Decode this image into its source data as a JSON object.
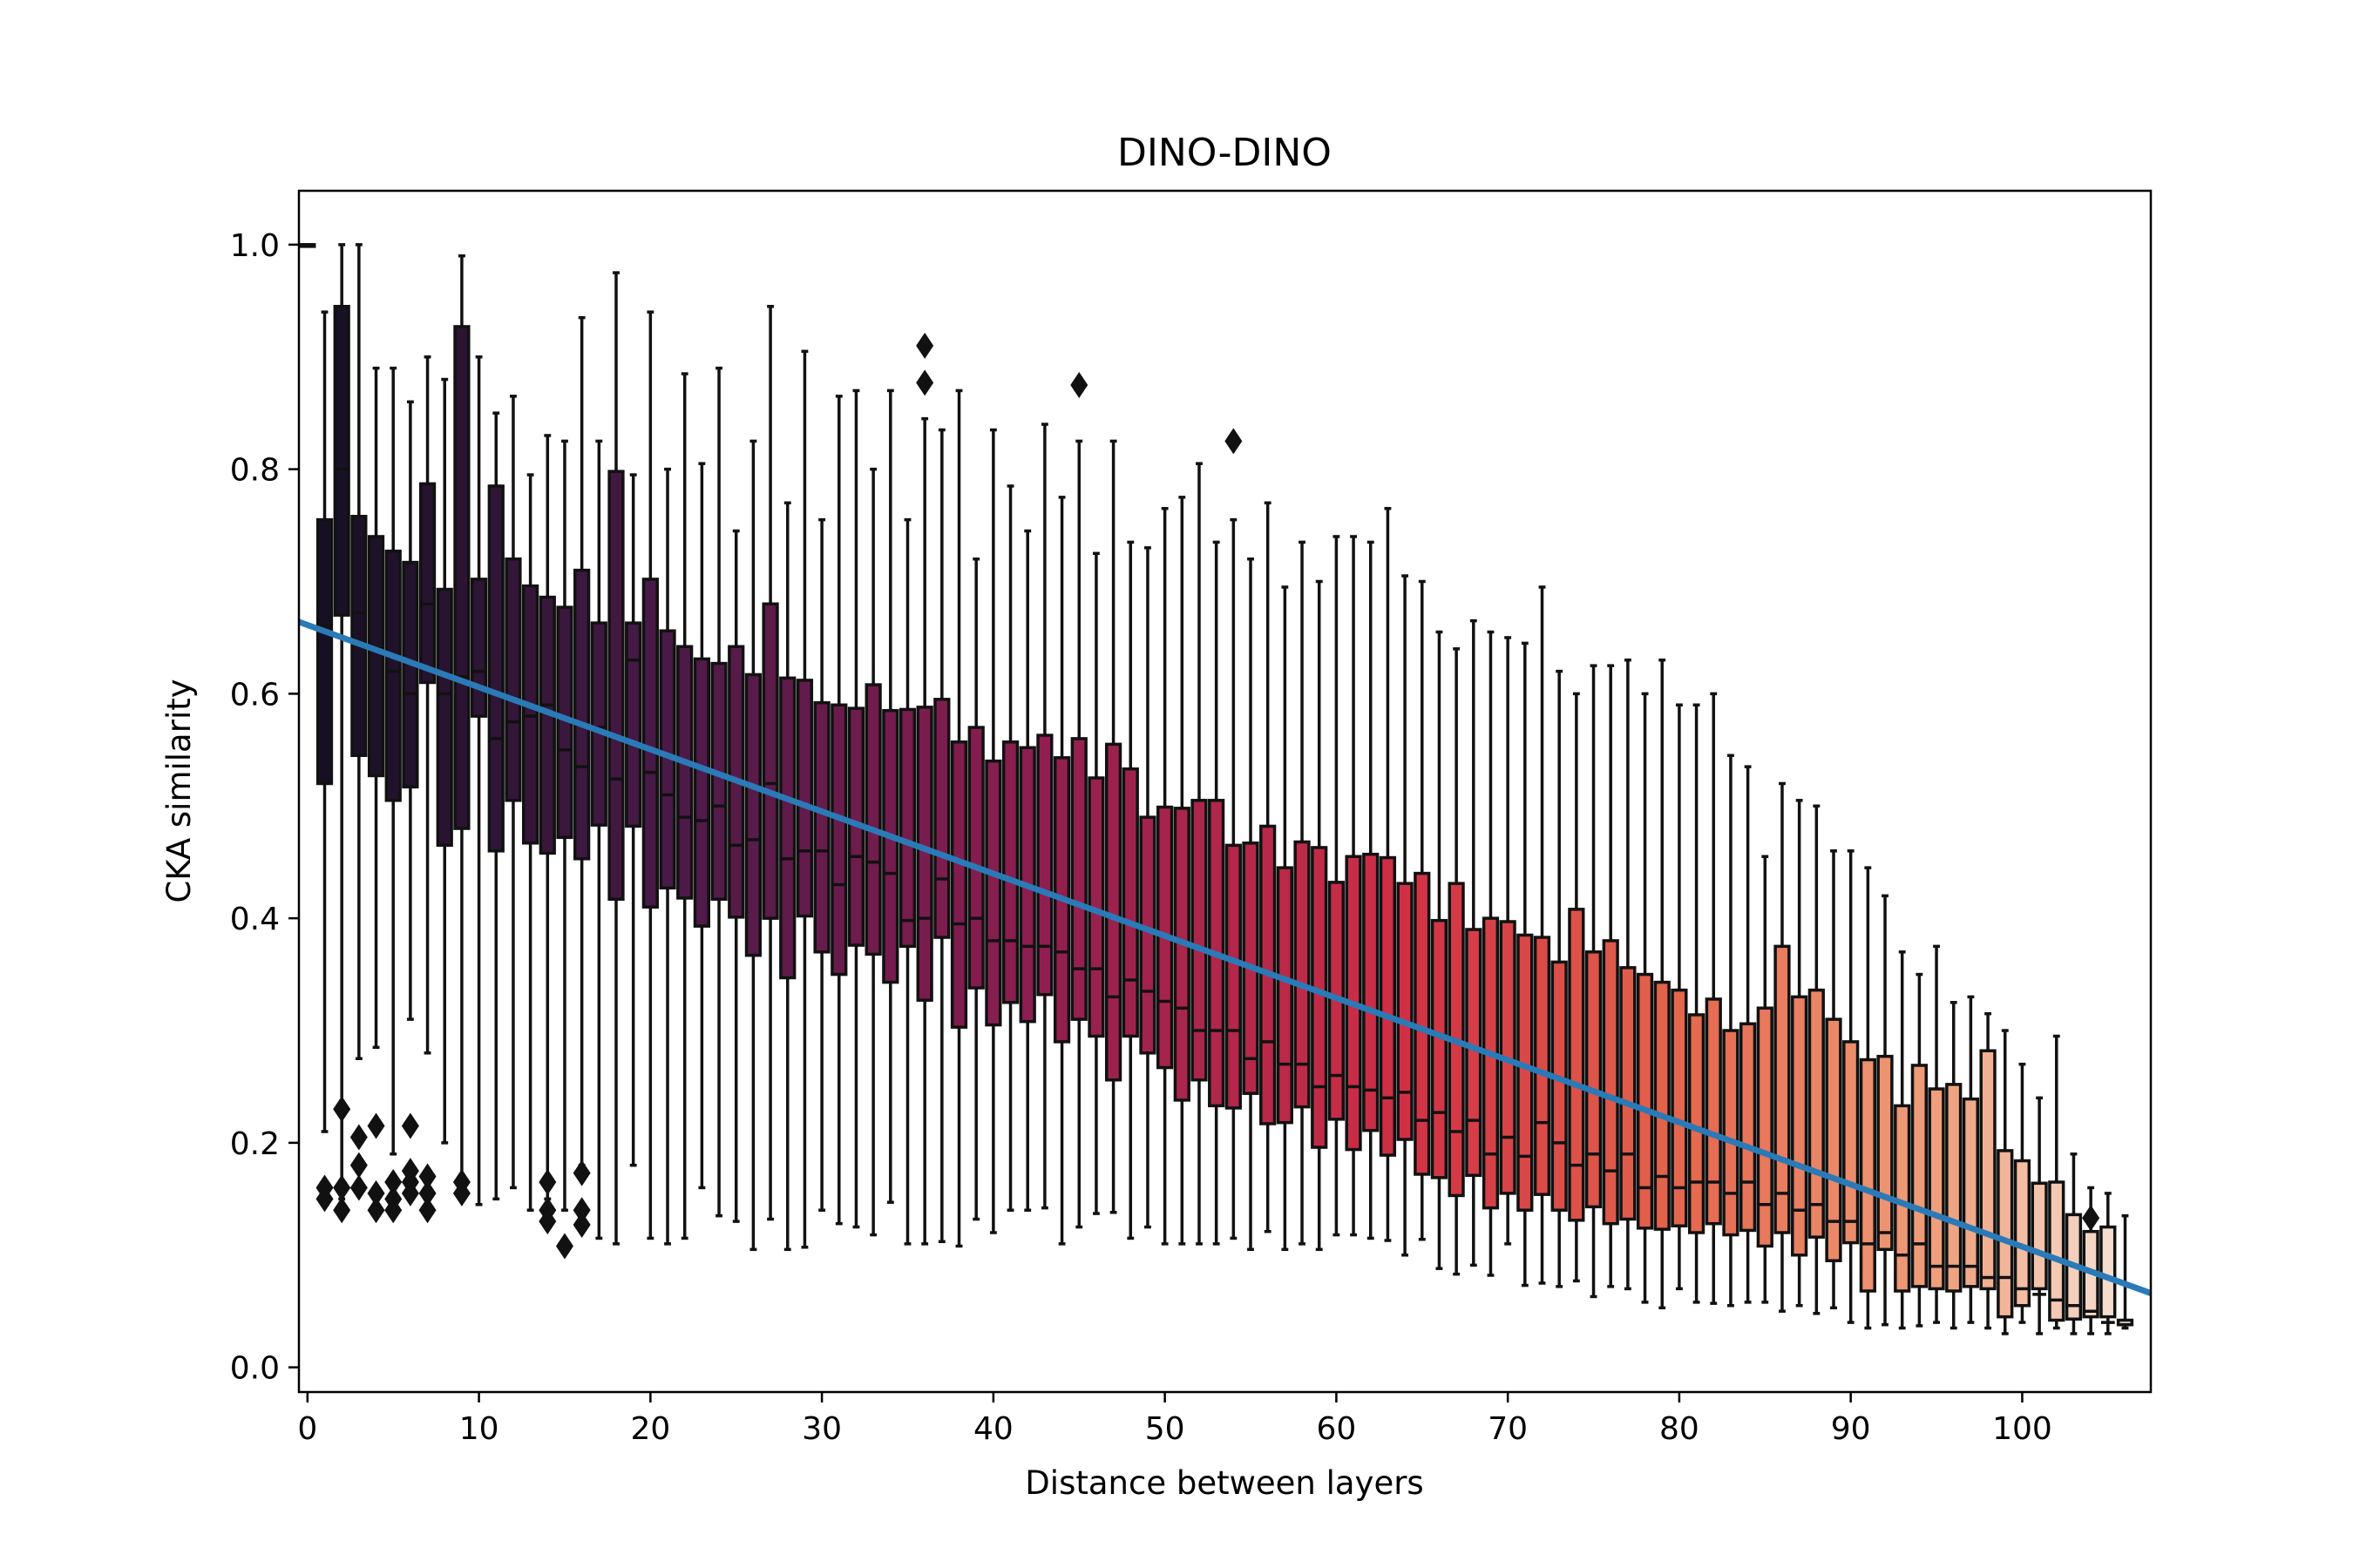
{
  "chart_data": {
    "type": "box",
    "title": "DINO-DINO",
    "xlabel": "Distance between layers",
    "ylabel": "CKA similarity",
    "xlim": [
      -0.5,
      107.5
    ],
    "ylim": [
      -0.022,
      1.048
    ],
    "xticks": [
      0,
      10,
      20,
      30,
      40,
      50,
      60,
      70,
      80,
      90,
      100
    ],
    "yticks": [
      0.0,
      0.2,
      0.4,
      0.6,
      0.8,
      1.0
    ],
    "ytick_labels": [
      "0.0",
      "0.2",
      "0.4",
      "0.6",
      "0.8",
      "1.0"
    ],
    "distances": [
      0,
      1,
      2,
      3,
      4,
      5,
      6,
      7,
      8,
      9,
      10,
      11,
      12,
      13,
      14,
      15,
      16,
      17,
      18,
      19,
      20,
      21,
      22,
      23,
      24,
      25,
      26,
      27,
      28,
      29,
      30,
      31,
      32,
      33,
      34,
      35,
      36,
      37,
      38,
      39,
      40,
      41,
      42,
      43,
      44,
      45,
      46,
      47,
      48,
      49,
      50,
      51,
      52,
      53,
      54,
      55,
      56,
      57,
      58,
      59,
      60,
      61,
      62,
      63,
      64,
      65,
      66,
      67,
      68,
      69,
      70,
      71,
      72,
      73,
      74,
      75,
      76,
      77,
      78,
      79,
      80,
      81,
      82,
      83,
      84,
      85,
      86,
      87,
      88,
      89,
      90,
      91,
      92,
      93,
      94,
      95,
      96,
      97,
      98,
      99,
      100,
      101,
      102,
      103,
      104,
      105,
      106
    ],
    "q1": [
      1.0,
      0.52,
      0.67,
      0.545,
      0.527,
      0.505,
      0.517,
      0.61,
      0.465,
      0.48,
      0.58,
      0.46,
      0.505,
      0.467,
      0.458,
      0.472,
      0.453,
      0.483,
      0.417,
      0.482,
      0.41,
      0.427,
      0.418,
      0.393,
      0.417,
      0.401,
      0.367,
      0.4,
      0.347,
      0.402,
      0.37,
      0.35,
      0.376,
      0.368,
      0.343,
      0.375,
      0.327,
      0.383,
      0.303,
      0.338,
      0.305,
      0.325,
      0.308,
      0.332,
      0.29,
      0.31,
      0.295,
      0.256,
      0.295,
      0.28,
      0.267,
      0.238,
      0.256,
      0.233,
      0.231,
      0.244,
      0.217,
      0.218,
      0.232,
      0.196,
      0.221,
      0.194,
      0.211,
      0.189,
      0.203,
      0.172,
      0.169,
      0.153,
      0.171,
      0.142,
      0.155,
      0.14,
      0.154,
      0.14,
      0.131,
      0.143,
      0.128,
      0.132,
      0.124,
      0.123,
      0.126,
      0.12,
      0.128,
      0.118,
      0.122,
      0.108,
      0.12,
      0.1,
      0.116,
      0.095,
      0.111,
      0.068,
      0.105,
      0.068,
      0.072,
      0.07,
      0.068,
      0.072,
      0.07,
      0.045,
      0.055,
      0.07,
      0.042,
      0.043,
      0.045,
      0.045,
      0.038
    ],
    "median": [
      1.0,
      0.66,
      0.8,
      0.672,
      0.64,
      0.62,
      0.6,
      0.68,
      0.6,
      0.615,
      0.62,
      0.56,
      0.575,
      0.58,
      0.59,
      0.55,
      0.535,
      0.57,
      0.524,
      0.63,
      0.53,
      0.51,
      0.49,
      0.487,
      0.5,
      0.465,
      0.47,
      0.52,
      0.453,
      0.46,
      0.46,
      0.43,
      0.455,
      0.45,
      0.44,
      0.398,
      0.4,
      0.435,
      0.395,
      0.4,
      0.38,
      0.38,
      0.375,
      0.375,
      0.37,
      0.355,
      0.355,
      0.33,
      0.345,
      0.335,
      0.326,
      0.32,
      0.3,
      0.3,
      0.3,
      0.275,
      0.29,
      0.27,
      0.27,
      0.25,
      0.26,
      0.25,
      0.247,
      0.24,
      0.245,
      0.22,
      0.227,
      0.21,
      0.22,
      0.19,
      0.205,
      0.188,
      0.218,
      0.2,
      0.18,
      0.19,
      0.175,
      0.19,
      0.16,
      0.17,
      0.16,
      0.165,
      0.165,
      0.155,
      0.165,
      0.145,
      0.155,
      0.14,
      0.145,
      0.13,
      0.13,
      0.11,
      0.12,
      0.1,
      0.11,
      0.09,
      0.09,
      0.09,
      0.08,
      0.08,
      0.07,
      0.065,
      0.06,
      0.055,
      0.05,
      0.04,
      0.038
    ],
    "q3": [
      1.0,
      0.755,
      0.945,
      0.758,
      0.74,
      0.727,
      0.717,
      0.787,
      0.693,
      0.927,
      0.702,
      0.785,
      0.72,
      0.696,
      0.686,
      0.677,
      0.71,
      0.663,
      0.798,
      0.663,
      0.702,
      0.656,
      0.642,
      0.631,
      0.627,
      0.642,
      0.617,
      0.68,
      0.614,
      0.612,
      0.592,
      0.59,
      0.587,
      0.608,
      0.585,
      0.586,
      0.588,
      0.595,
      0.557,
      0.57,
      0.54,
      0.557,
      0.552,
      0.563,
      0.543,
      0.56,
      0.525,
      0.555,
      0.533,
      0.49,
      0.499,
      0.498,
      0.505,
      0.505,
      0.465,
      0.467,
      0.482,
      0.445,
      0.468,
      0.463,
      0.432,
      0.455,
      0.457,
      0.454,
      0.431,
      0.44,
      0.398,
      0.431,
      0.39,
      0.4,
      0.397,
      0.385,
      0.383,
      0.361,
      0.408,
      0.37,
      0.38,
      0.356,
      0.35,
      0.343,
      0.336,
      0.314,
      0.328,
      0.3,
      0.306,
      0.32,
      0.375,
      0.33,
      0.336,
      0.31,
      0.29,
      0.274,
      0.277,
      0.233,
      0.269,
      0.248,
      0.252,
      0.239,
      0.282,
      0.193,
      0.184,
      0.164,
      0.165,
      0.136,
      0.121,
      0.125,
      0.042
    ],
    "whisker_low": [
      1.0,
      0.21,
      0.15,
      0.275,
      0.285,
      0.19,
      0.31,
      0.28,
      0.2,
      0.15,
      0.145,
      0.15,
      0.16,
      0.14,
      0.15,
      0.14,
      0.18,
      0.115,
      0.11,
      0.18,
      0.115,
      0.11,
      0.115,
      0.16,
      0.135,
      0.13,
      0.105,
      0.132,
      0.105,
      0.107,
      0.14,
      0.128,
      0.125,
      0.118,
      0.147,
      0.11,
      0.11,
      0.112,
      0.108,
      0.132,
      0.12,
      0.14,
      0.14,
      0.142,
      0.11,
      0.125,
      0.137,
      0.138,
      0.115,
      0.125,
      0.11,
      0.11,
      0.11,
      0.11,
      0.115,
      0.105,
      0.121,
      0.105,
      0.11,
      0.105,
      0.118,
      0.118,
      0.115,
      0.113,
      0.1,
      0.114,
      0.088,
      0.083,
      0.091,
      0.082,
      0.11,
      0.073,
      0.075,
      0.072,
      0.077,
      0.063,
      0.072,
      0.07,
      0.058,
      0.053,
      0.07,
      0.058,
      0.057,
      0.055,
      0.058,
      0.058,
      0.05,
      0.055,
      0.048,
      0.053,
      0.04,
      0.035,
      0.038,
      0.035,
      0.037,
      0.04,
      0.035,
      0.04,
      0.035,
      0.03,
      0.04,
      0.03,
      0.035,
      0.03,
      0.03,
      0.03,
      0.035
    ],
    "whisker_high": [
      1.0,
      0.94,
      1.0,
      1.0,
      0.89,
      0.89,
      0.86,
      0.9,
      0.88,
      0.99,
      0.9,
      0.85,
      0.865,
      0.795,
      0.83,
      0.825,
      0.935,
      0.825,
      0.975,
      0.795,
      0.94,
      0.8,
      0.885,
      0.805,
      0.89,
      0.745,
      0.825,
      0.945,
      0.77,
      0.905,
      0.755,
      0.865,
      0.87,
      0.8,
      0.87,
      0.755,
      0.845,
      0.835,
      0.87,
      0.72,
      0.835,
      0.785,
      0.745,
      0.84,
      0.775,
      0.825,
      0.725,
      0.825,
      0.735,
      0.73,
      0.765,
      0.775,
      0.805,
      0.735,
      0.755,
      0.72,
      0.77,
      0.695,
      0.735,
      0.7,
      0.74,
      0.74,
      0.735,
      0.765,
      0.705,
      0.7,
      0.655,
      0.64,
      0.665,
      0.655,
      0.65,
      0.645,
      0.695,
      0.62,
      0.6,
      0.625,
      0.625,
      0.63,
      0.6,
      0.63,
      0.59,
      0.59,
      0.6,
      0.545,
      0.535,
      0.455,
      0.52,
      0.505,
      0.5,
      0.46,
      0.46,
      0.445,
      0.42,
      0.37,
      0.35,
      0.375,
      0.325,
      0.33,
      0.315,
      0.3,
      0.27,
      0.24,
      0.295,
      0.19,
      0.16,
      0.155,
      0.135,
      0.145
    ],
    "outliers": [
      [
        1,
        0.16
      ],
      [
        1,
        0.15
      ],
      [
        2,
        0.23
      ],
      [
        2,
        0.16
      ],
      [
        2,
        0.14
      ],
      [
        3,
        0.205
      ],
      [
        3,
        0.18
      ],
      [
        3,
        0.16
      ],
      [
        4,
        0.215
      ],
      [
        4,
        0.155
      ],
      [
        4,
        0.14
      ],
      [
        5,
        0.165
      ],
      [
        5,
        0.15
      ],
      [
        5,
        0.14
      ],
      [
        6,
        0.215
      ],
      [
        6,
        0.175
      ],
      [
        6,
        0.165
      ],
      [
        6,
        0.155
      ],
      [
        7,
        0.17
      ],
      [
        7,
        0.155
      ],
      [
        7,
        0.14
      ],
      [
        9,
        0.165
      ],
      [
        9,
        0.155
      ],
      [
        14,
        0.165
      ],
      [
        14,
        0.14
      ],
      [
        14,
        0.13
      ],
      [
        15,
        0.108
      ],
      [
        16,
        0.173
      ],
      [
        16,
        0.14
      ],
      [
        16,
        0.127
      ],
      [
        36,
        0.91
      ],
      [
        36,
        0.877
      ],
      [
        45,
        0.875
      ],
      [
        54,
        0.825
      ],
      [
        104,
        0.133
      ]
    ],
    "trend_line": {
      "x": [
        -0.5,
        107.5
      ],
      "y": [
        0.664,
        0.066
      ],
      "color": "#2a7ab8"
    }
  }
}
